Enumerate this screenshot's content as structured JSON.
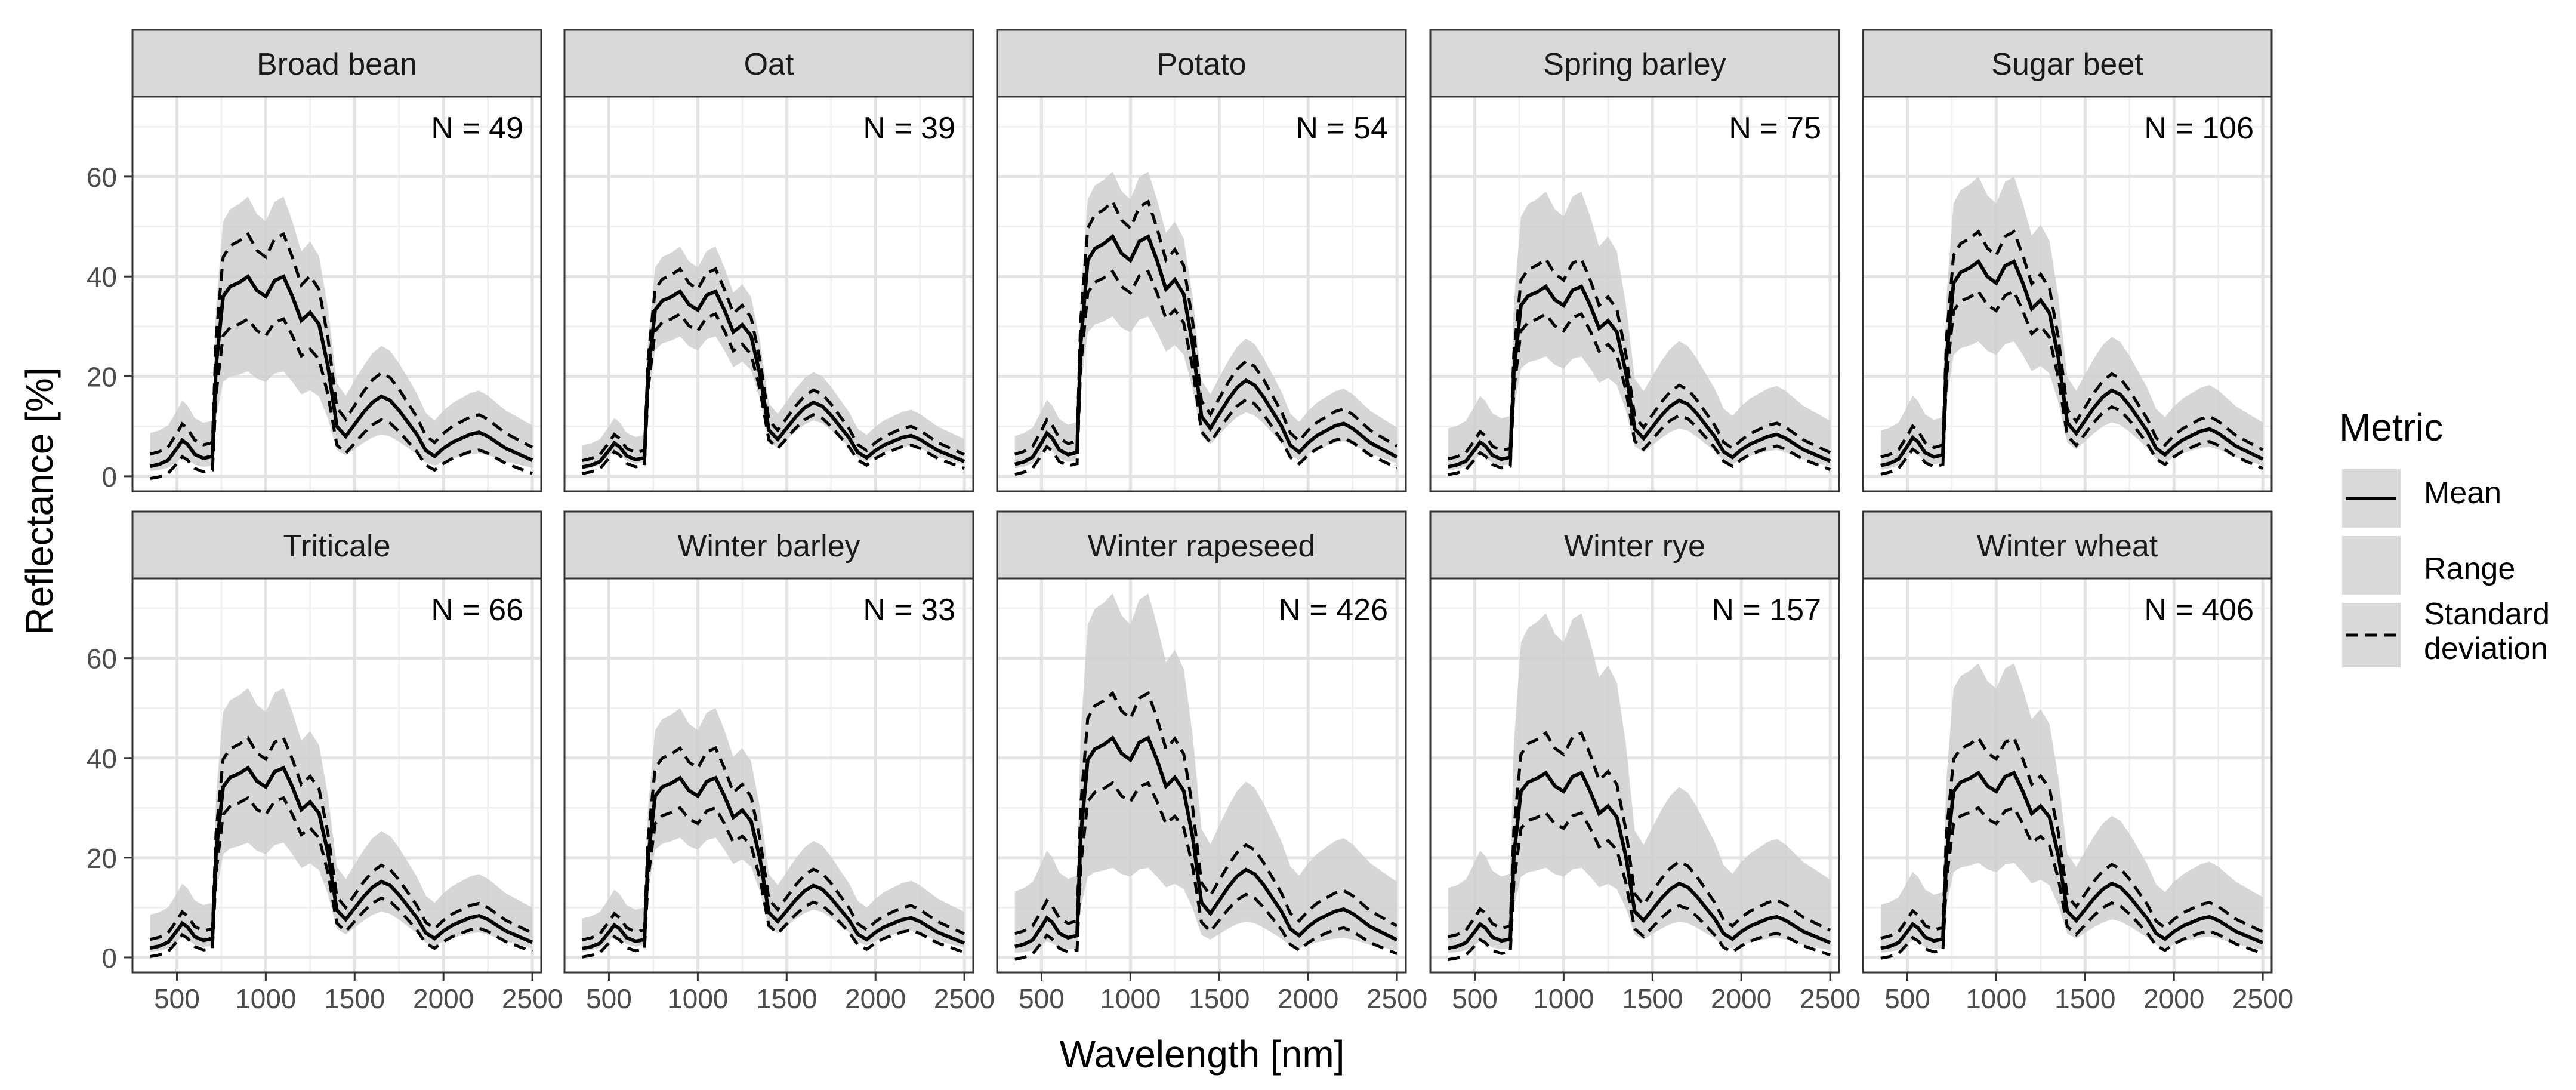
{
  "chart_data": {
    "type": "line",
    "layout": "faceted-grid",
    "rows": 2,
    "cols": 5,
    "xlabel": "Wavelength [nm]",
    "ylabel": "Reflectance [%]",
    "xlim": [
      250,
      2550
    ],
    "ylim": [
      -3,
      76
    ],
    "xticks": [
      500,
      1000,
      1500,
      2000,
      2500
    ],
    "yticks": [
      0,
      20,
      40,
      60
    ],
    "grid": true,
    "legend": {
      "title": "Metric",
      "placement": "right",
      "entries": [
        {
          "key": "mean",
          "label": "Mean",
          "style": "solid-line"
        },
        {
          "key": "range",
          "label": "Range",
          "style": "grey-band"
        },
        {
          "key": "sd",
          "label_lines": [
            "Standard",
            "deviation"
          ],
          "style": "dashed-line"
        }
      ]
    },
    "x": [
      350,
      400,
      450,
      500,
      530,
      560,
      600,
      650,
      700,
      720,
      760,
      800,
      850,
      900,
      950,
      1000,
      1050,
      1100,
      1150,
      1200,
      1250,
      1300,
      1350,
      1400,
      1450,
      1500,
      1550,
      1600,
      1650,
      1700,
      1750,
      1800,
      1850,
      1900,
      1950,
      2000,
      2050,
      2100,
      2150,
      2200,
      2250,
      2300,
      2350,
      2400,
      2450,
      2500
    ],
    "shape": [
      0.05,
      0.06,
      0.08,
      0.14,
      0.18,
      0.16,
      0.11,
      0.09,
      0.1,
      0.55,
      0.9,
      0.95,
      0.97,
      1.0,
      0.93,
      0.9,
      0.98,
      1.0,
      0.9,
      0.78,
      0.82,
      0.76,
      0.55,
      0.25,
      0.2,
      0.26,
      0.32,
      0.37,
      0.4,
      0.38,
      0.33,
      0.27,
      0.21,
      0.13,
      0.1,
      0.14,
      0.17,
      0.19,
      0.21,
      0.22,
      0.2,
      0.17,
      0.14,
      0.12,
      0.1,
      0.08
    ],
    "facets": [
      {
        "name": "Broad bean",
        "n_label": "N = 49",
        "mean_peak": 40,
        "sd": 8.5,
        "range_low": 19,
        "range_high": 14
      },
      {
        "name": "Oat",
        "n_label": "N = 39",
        "mean_peak": 37,
        "sd": 4.5,
        "range_low": 9,
        "range_high": 7
      },
      {
        "name": "Potato",
        "n_label": "N = 54",
        "mean_peak": 48,
        "sd": 7,
        "range_low": 16,
        "range_high": 11
      },
      {
        "name": "Spring barley",
        "n_label": "N = 75",
        "mean_peak": 38,
        "sd": 5.5,
        "range_low": 14,
        "range_high": 17
      },
      {
        "name": "Sugar beet",
        "n_label": "N = 106",
        "mean_peak": 43,
        "sd": 6,
        "range_low": 16,
        "range_high": 15
      },
      {
        "name": "Triticale",
        "n_label": "N = 66",
        "mean_peak": 38,
        "sd": 6,
        "range_low": 15,
        "range_high": 14
      },
      {
        "name": "Winter barley",
        "n_label": "N = 33",
        "mean_peak": 36,
        "sd": 6,
        "range_low": 12,
        "range_high": 12
      },
      {
        "name": "Winter rapeseed",
        "n_label": "N = 426",
        "mean_peak": 44,
        "sd": 9,
        "range_low": 26,
        "range_high": 27
      },
      {
        "name": "Winter rye",
        "n_label": "N = 157",
        "mean_peak": 37,
        "sd": 8,
        "range_low": 19,
        "range_high": 30
      },
      {
        "name": "Winter wheat",
        "n_label": "N = 406",
        "mean_peak": 37,
        "sd": 7,
        "range_low": 18,
        "range_high": 20
      }
    ]
  }
}
